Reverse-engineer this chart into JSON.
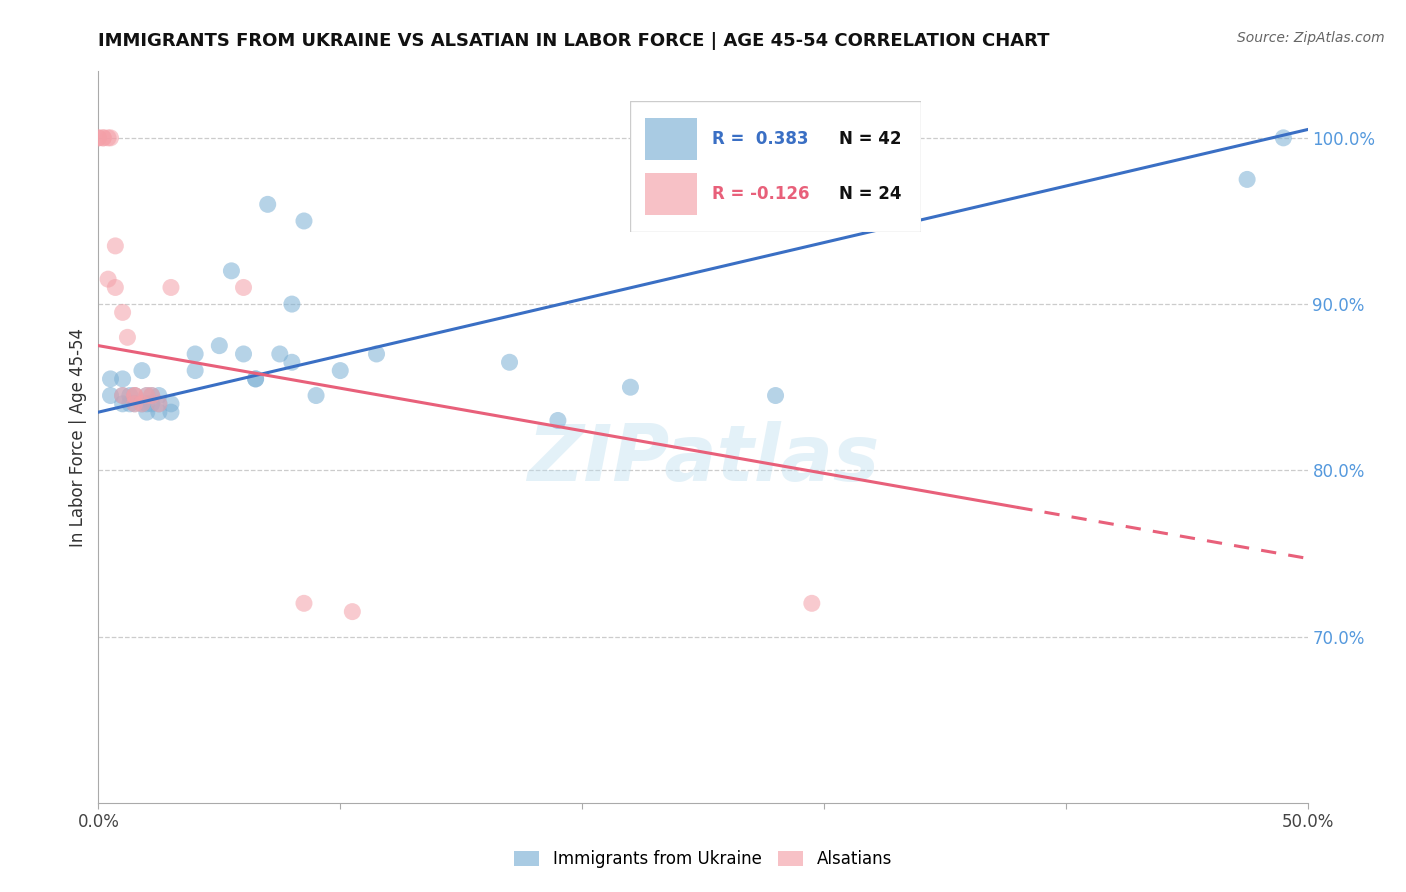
{
  "title": "IMMIGRANTS FROM UKRAINE VS ALSATIAN IN LABOR FORCE | AGE 45-54 CORRELATION CHART",
  "source": "Source: ZipAtlas.com",
  "ylabel": "In Labor Force | Age 45-54",
  "xlim": [
    0.0,
    0.5
  ],
  "ylim": [
    0.6,
    1.04
  ],
  "xticks": [
    0.0,
    0.1,
    0.2,
    0.3,
    0.4,
    0.5
  ],
  "xtick_labels": [
    "0.0%",
    "",
    "",
    "",
    "",
    "50.0%"
  ],
  "yticks_right": [
    0.7,
    0.8,
    0.9,
    1.0
  ],
  "ytick_right_labels": [
    "70.0%",
    "80.0%",
    "90.0%",
    "100.0%"
  ],
  "blue_color": "#7BAFD4",
  "pink_color": "#F4A0A8",
  "blue_line_color": "#3A6FC4",
  "pink_line_color": "#E8607A",
  "legend_R_blue": "R =  0.383",
  "legend_N_blue": "N = 42",
  "legend_R_pink": "R = -0.126",
  "legend_N_pink": "N = 24",
  "watermark_text": "ZIPatlas",
  "blue_scatter_x": [
    0.005,
    0.005,
    0.01,
    0.01,
    0.01,
    0.013,
    0.013,
    0.015,
    0.015,
    0.018,
    0.018,
    0.02,
    0.02,
    0.02,
    0.022,
    0.022,
    0.025,
    0.025,
    0.025,
    0.03,
    0.03,
    0.04,
    0.04,
    0.05,
    0.055,
    0.06,
    0.065,
    0.065,
    0.07,
    0.075,
    0.08,
    0.08,
    0.085,
    0.09,
    0.1,
    0.115,
    0.17,
    0.19,
    0.22,
    0.28,
    0.475,
    0.49
  ],
  "blue_scatter_y": [
    0.855,
    0.845,
    0.855,
    0.845,
    0.84,
    0.845,
    0.84,
    0.84,
    0.845,
    0.86,
    0.84,
    0.835,
    0.84,
    0.845,
    0.84,
    0.845,
    0.835,
    0.84,
    0.845,
    0.84,
    0.835,
    0.87,
    0.86,
    0.875,
    0.92,
    0.87,
    0.855,
    0.855,
    0.96,
    0.87,
    0.9,
    0.865,
    0.95,
    0.845,
    0.86,
    0.87,
    0.865,
    0.83,
    0.85,
    0.845,
    0.975,
    1.0
  ],
  "pink_scatter_x": [
    0.0,
    0.0,
    0.002,
    0.002,
    0.004,
    0.004,
    0.005,
    0.007,
    0.007,
    0.01,
    0.01,
    0.012,
    0.015,
    0.015,
    0.015,
    0.018,
    0.02,
    0.022,
    0.025,
    0.03,
    0.06,
    0.085,
    0.105,
    0.295
  ],
  "pink_scatter_y": [
    1.0,
    1.0,
    1.0,
    1.0,
    1.0,
    0.915,
    1.0,
    0.935,
    0.91,
    0.895,
    0.845,
    0.88,
    0.845,
    0.845,
    0.84,
    0.84,
    0.845,
    0.845,
    0.84,
    0.91,
    0.91,
    0.72,
    0.715,
    0.72
  ],
  "blue_line_x0": 0.0,
  "blue_line_x1": 0.5,
  "blue_line_y0": 0.835,
  "blue_line_y1": 1.005,
  "pink_line_solid_x0": 0.0,
  "pink_line_solid_x1": 0.38,
  "pink_line_x0": 0.0,
  "pink_line_x1": 0.5,
  "pink_line_y0": 0.875,
  "pink_line_y1": 0.747,
  "grid_color": "#CCCCCC",
  "spine_color": "#AAAAAA"
}
